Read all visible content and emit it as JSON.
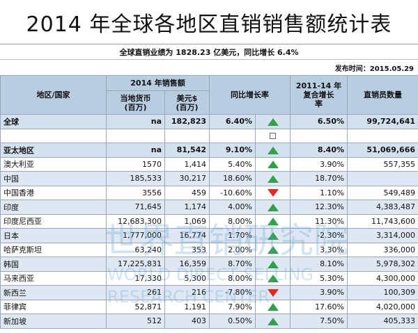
{
  "title": "2014 年全球各地区直销销售额统计表",
  "subtitle": "全球直销业绩为 1828.23 亿美元，同比增长 6.4%",
  "publish_date": "发布时间：2015.05.29",
  "header": {
    "region": "地区/国家",
    "sales_2014": "2014 年销售额",
    "local_currency": "当地货币",
    "local_unit": "(百万)",
    "usd": "美元$",
    "usd_unit": "(百万)",
    "yoy": "同比增长率",
    "cagr_line1": "2011-14 年",
    "cagr_line2": "复合增长",
    "cagr_line3": "率",
    "sellers": "直销员数量"
  },
  "rows": [
    {
      "name": "全球",
      "local": "na",
      "usd": "182,823",
      "yoy": "6.40%",
      "trend": "up",
      "cagr": "6.50%",
      "sellers": "99,724,641",
      "style": "hl"
    },
    {
      "name": "",
      "local": "",
      "usd": "",
      "yoy": "",
      "trend": "checkbox",
      "cagr": "",
      "sellers": "",
      "style": "white"
    },
    {
      "name": "亚太地区",
      "local": "na",
      "usd": "81,542",
      "yoy": "9.10%",
      "trend": "up",
      "cagr": "8.40%",
      "sellers": "51,069,666",
      "style": "hl"
    },
    {
      "name": "澳大利亚",
      "local": "1570",
      "usd": "1,414",
      "yoy": "5.40%",
      "trend": "up",
      "cagr": "3.90%",
      "sellers": "557,355",
      "style": "white"
    },
    {
      "name": "中国",
      "local": "185,533",
      "usd": "30,217",
      "yoy": "18.60%",
      "trend": "up",
      "cagr": "18.70%",
      "sellers": "",
      "style": "alt"
    },
    {
      "name": "中国香港",
      "local": "3556",
      "usd": "459",
      "yoy": "-10.60%",
      "trend": "down",
      "cagr": "1.10%",
      "sellers": "549,489",
      "style": "white"
    },
    {
      "name": "印度",
      "local": "71,645",
      "usd": "1,174",
      "yoy": "4.00%",
      "trend": "up",
      "cagr": "12.30%",
      "sellers": "4,383,487",
      "style": "alt"
    },
    {
      "name": "印度尼西亚",
      "local": "12,683,300",
      "usd": "1,069",
      "yoy": "8.00%",
      "trend": "up",
      "cagr": "11.30%",
      "sellers": "11,743,600",
      "style": "white"
    },
    {
      "name": "日本",
      "local": "1,777,000",
      "usd": "16,774",
      "yoy": "1.70%",
      "trend": "up",
      "cagr": "-2.30%",
      "sellers": "3,314,000",
      "style": "alt"
    },
    {
      "name": "哈萨克斯坦",
      "local": "63,240",
      "usd": "353",
      "yoy": "2.00%",
      "trend": "up",
      "cagr": "3.30%",
      "sellers": "336,000",
      "style": "white"
    },
    {
      "name": "韩国",
      "local": "17,225,831",
      "usd": "16,359",
      "yoy": "8.70%",
      "trend": "up",
      "cagr": "8.10%",
      "sellers": "5,978,302",
      "style": "alt"
    },
    {
      "name": "马来西亚",
      "local": "17,330",
      "usd": "5,300",
      "yoy": "8.00%",
      "trend": "up",
      "cagr": "5.30%",
      "sellers": "4,300,000",
      "style": "white"
    },
    {
      "name": "新西兰",
      "local": "261",
      "usd": "216",
      "yoy": "-7.80%",
      "trend": "down",
      "cagr": "3.90%",
      "sellers": "100,309",
      "style": "alt"
    },
    {
      "name": "菲律宾",
      "local": "52,871",
      "usd": "1,191",
      "yoy": "7.90%",
      "trend": "up",
      "cagr": "17.60%",
      "sellers": "4,020,000",
      "style": "white"
    },
    {
      "name": "新加坡",
      "local": "512",
      "usd": "403",
      "yoy": "0.50%",
      "trend": "up",
      "cagr": "7.50%",
      "sellers": "405,333",
      "style": "alt"
    }
  ],
  "watermark": {
    "cn": "世界直销研究院",
    "en1": "WORLD DIRECT SELLING",
    "en2": "RESEARCH CENTER"
  },
  "colors": {
    "header_bg": "#b9cde0",
    "highlight_bg": "#d3e1ee",
    "alt_bg": "#dfe8f2",
    "up": "#2fa24a",
    "down": "#e02a2a"
  }
}
